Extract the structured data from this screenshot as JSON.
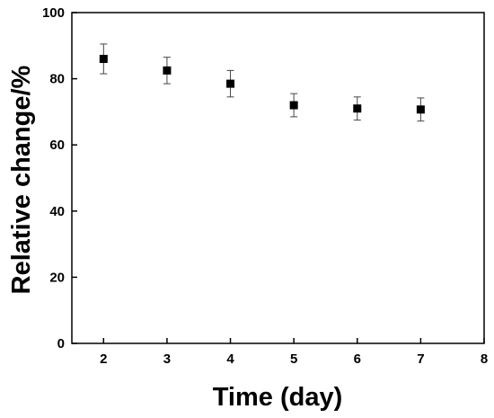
{
  "chart_data": {
    "type": "scatter",
    "title": "",
    "xlabel": "Time (day)",
    "ylabel": "Relative change/%",
    "xlim": [
      1.5,
      8
    ],
    "ylim": [
      0,
      100
    ],
    "xticks": [
      2,
      3,
      4,
      5,
      6,
      7,
      8
    ],
    "yticks": [
      0,
      20,
      40,
      60,
      80,
      100
    ],
    "grid": false,
    "legend": "none",
    "marker": "square",
    "color": "#000000",
    "series": [
      {
        "x": [
          2,
          3,
          4,
          5,
          6,
          7
        ],
        "y": [
          86.0,
          82.5,
          78.5,
          72.0,
          71.0,
          70.7
        ],
        "error": [
          4.5,
          4.0,
          4.0,
          3.5,
          3.5,
          3.5
        ]
      }
    ]
  }
}
